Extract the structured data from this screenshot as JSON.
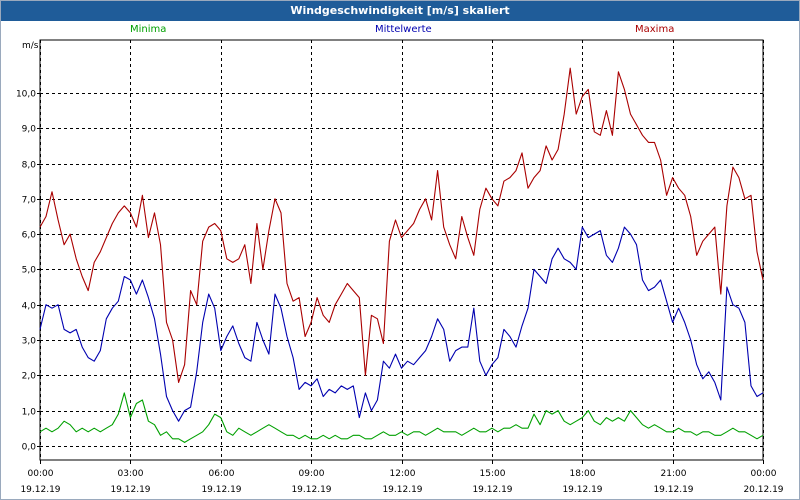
{
  "window": {
    "title": "Windgeschwindigkeit [m/s] skaliert"
  },
  "colors": {
    "titlebar": "#1f5c99",
    "minima": "#00a000",
    "mittelwerte": "#0000b0",
    "maxima": "#aa0000",
    "grid": "#000000"
  },
  "chart_data": {
    "type": "line",
    "title": "Windgeschwindigkeit [m/s] skaliert",
    "ylabel": "m/s",
    "xlabel": "",
    "ylim": [
      -0.4,
      11.5
    ],
    "xlim": [
      0,
      24
    ],
    "grid": true,
    "legend_placement": "top",
    "yticks": [
      {
        "value": 0.0,
        "label": "0,0"
      },
      {
        "value": 1.0,
        "label": "1,0"
      },
      {
        "value": 2.0,
        "label": "2,0"
      },
      {
        "value": 3.0,
        "label": "3,0"
      },
      {
        "value": 4.0,
        "label": "4,0"
      },
      {
        "value": 5.0,
        "label": "5,0"
      },
      {
        "value": 6.0,
        "label": "6,0"
      },
      {
        "value": 7.0,
        "label": "7,0"
      },
      {
        "value": 8.0,
        "label": "8,0"
      },
      {
        "value": 9.0,
        "label": "9,0"
      },
      {
        "value": 10.0,
        "label": "10,0"
      }
    ],
    "xticks": [
      {
        "value": 0,
        "time": "00:00",
        "date": "19.12.19"
      },
      {
        "value": 3,
        "time": "03:00",
        "date": "19.12.19"
      },
      {
        "value": 6,
        "time": "06:00",
        "date": "19.12.19"
      },
      {
        "value": 9,
        "time": "09:00",
        "date": "19.12.19"
      },
      {
        "value": 12,
        "time": "12:00",
        "date": "19.12.19"
      },
      {
        "value": 15,
        "time": "15:00",
        "date": "19.12.19"
      },
      {
        "value": 18,
        "time": "18:00",
        "date": "19.12.19"
      },
      {
        "value": 21,
        "time": "21:00",
        "date": "19.12.19"
      },
      {
        "value": 24,
        "time": "00:00",
        "date": "20.12.19"
      }
    ],
    "series": [
      {
        "name": "Maxima",
        "color": "#aa0000",
        "x": [
          0.0,
          0.2,
          0.4,
          0.6,
          0.8,
          1.0,
          1.2,
          1.4,
          1.6,
          1.8,
          2.0,
          2.2,
          2.4,
          2.6,
          2.8,
          3.0,
          3.2,
          3.4,
          3.6,
          3.8,
          4.0,
          4.2,
          4.4,
          4.6,
          4.8,
          5.0,
          5.2,
          5.4,
          5.6,
          5.8,
          6.0,
          6.2,
          6.4,
          6.6,
          6.8,
          7.0,
          7.2,
          7.4,
          7.6,
          7.8,
          8.0,
          8.2,
          8.4,
          8.6,
          8.8,
          9.0,
          9.2,
          9.4,
          9.6,
          9.8,
          10.0,
          10.2,
          10.4,
          10.6,
          10.8,
          11.0,
          11.2,
          11.4,
          11.6,
          11.8,
          12.0,
          12.2,
          12.4,
          12.6,
          12.8,
          13.0,
          13.2,
          13.4,
          13.6,
          13.8,
          14.0,
          14.2,
          14.4,
          14.6,
          14.8,
          15.0,
          15.2,
          15.4,
          15.6,
          15.8,
          16.0,
          16.2,
          16.4,
          16.6,
          16.8,
          17.0,
          17.2,
          17.4,
          17.6,
          17.8,
          18.0,
          18.2,
          18.4,
          18.6,
          18.8,
          19.0,
          19.2,
          19.4,
          19.6,
          19.8,
          20.0,
          20.2,
          20.4,
          20.6,
          20.8,
          21.0,
          21.2,
          21.4,
          21.6,
          21.8,
          22.0,
          22.2,
          22.4,
          22.6,
          22.8,
          23.0,
          23.2,
          23.4,
          23.6,
          23.8,
          24.0
        ],
        "values": [
          6.2,
          6.5,
          7.2,
          6.4,
          5.7,
          6.0,
          5.3,
          4.8,
          4.4,
          5.2,
          5.5,
          5.9,
          6.3,
          6.6,
          6.8,
          6.6,
          6.2,
          7.1,
          5.9,
          6.6,
          5.7,
          3.5,
          3.0,
          1.8,
          2.3,
          4.4,
          4.0,
          5.8,
          6.2,
          6.3,
          6.1,
          5.3,
          5.2,
          5.3,
          5.7,
          4.6,
          6.3,
          5.0,
          6.1,
          7.0,
          6.6,
          4.6,
          4.1,
          4.2,
          3.1,
          3.5,
          4.2,
          3.7,
          3.5,
          4.0,
          4.3,
          4.6,
          4.4,
          4.2,
          2.0,
          3.7,
          3.6,
          2.9,
          5.8,
          6.4,
          5.9,
          6.1,
          6.3,
          6.7,
          7.0,
          6.4,
          7.8,
          6.2,
          5.7,
          5.3,
          6.5,
          5.9,
          5.4,
          6.7,
          7.3,
          7.0,
          6.8,
          7.5,
          7.6,
          7.8,
          8.3,
          7.3,
          7.6,
          7.8,
          8.5,
          8.1,
          8.4,
          9.4,
          10.7,
          9.4,
          9.9,
          10.1,
          8.9,
          8.8,
          9.5,
          8.8,
          10.6,
          10.1,
          9.4,
          9.1,
          8.8,
          8.6,
          8.6,
          8.1,
          7.1,
          7.6,
          7.3,
          7.1,
          6.5,
          5.4,
          5.8,
          6.0,
          6.2,
          4.3,
          6.8,
          7.9,
          7.6,
          7.0,
          7.1,
          5.5,
          4.7
        ]
      },
      {
        "name": "Mittelwerte",
        "color": "#0000b0",
        "x": [
          0.0,
          0.2,
          0.4,
          0.6,
          0.8,
          1.0,
          1.2,
          1.4,
          1.6,
          1.8,
          2.0,
          2.2,
          2.4,
          2.6,
          2.8,
          3.0,
          3.2,
          3.4,
          3.6,
          3.8,
          4.0,
          4.2,
          4.4,
          4.6,
          4.8,
          5.0,
          5.2,
          5.4,
          5.6,
          5.8,
          6.0,
          6.2,
          6.4,
          6.6,
          6.8,
          7.0,
          7.2,
          7.4,
          7.6,
          7.8,
          8.0,
          8.2,
          8.4,
          8.6,
          8.8,
          9.0,
          9.2,
          9.4,
          9.6,
          9.8,
          10.0,
          10.2,
          10.4,
          10.6,
          10.8,
          11.0,
          11.2,
          11.4,
          11.6,
          11.8,
          12.0,
          12.2,
          12.4,
          12.6,
          12.8,
          13.0,
          13.2,
          13.4,
          13.6,
          13.8,
          14.0,
          14.2,
          14.4,
          14.6,
          14.8,
          15.0,
          15.2,
          15.4,
          15.6,
          15.8,
          16.0,
          16.2,
          16.4,
          16.6,
          16.8,
          17.0,
          17.2,
          17.4,
          17.6,
          17.8,
          18.0,
          18.2,
          18.4,
          18.6,
          18.8,
          19.0,
          19.2,
          19.4,
          19.6,
          19.8,
          20.0,
          20.2,
          20.4,
          20.6,
          20.8,
          21.0,
          21.2,
          21.4,
          21.6,
          21.8,
          22.0,
          22.2,
          22.4,
          22.6,
          22.8,
          23.0,
          23.2,
          23.4,
          23.6,
          23.8,
          24.0
        ],
        "values": [
          3.3,
          4.0,
          3.9,
          4.0,
          3.3,
          3.2,
          3.3,
          2.8,
          2.5,
          2.4,
          2.7,
          3.6,
          3.9,
          4.1,
          4.8,
          4.7,
          4.3,
          4.7,
          4.2,
          3.6,
          2.6,
          1.4,
          1.0,
          0.7,
          1.0,
          1.1,
          2.1,
          3.5,
          4.3,
          3.9,
          2.7,
          3.1,
          3.4,
          2.9,
          2.5,
          2.4,
          3.5,
          3.0,
          2.6,
          4.3,
          3.9,
          3.1,
          2.5,
          1.6,
          1.8,
          1.7,
          1.9,
          1.4,
          1.6,
          1.5,
          1.7,
          1.6,
          1.7,
          0.8,
          1.5,
          1.0,
          1.3,
          2.4,
          2.2,
          2.6,
          2.2,
          2.4,
          2.3,
          2.5,
          2.7,
          3.1,
          3.6,
          3.3,
          2.4,
          2.7,
          2.8,
          2.8,
          3.9,
          2.4,
          2.0,
          2.3,
          2.5,
          3.3,
          3.1,
          2.8,
          3.4,
          3.9,
          5.0,
          4.8,
          4.6,
          5.3,
          5.6,
          5.3,
          5.2,
          5.0,
          6.2,
          5.9,
          6.0,
          6.1,
          5.4,
          5.2,
          5.6,
          6.2,
          6.0,
          5.7,
          4.7,
          4.4,
          4.5,
          4.7,
          4.1,
          3.5,
          3.9,
          3.5,
          3.0,
          2.3,
          1.9,
          2.1,
          1.8,
          1.3,
          4.5,
          4.0,
          3.9,
          3.5,
          1.7,
          1.4,
          1.5
        ]
      },
      {
        "name": "Minima",
        "color": "#00a000",
        "x": [
          0.0,
          0.2,
          0.4,
          0.6,
          0.8,
          1.0,
          1.2,
          1.4,
          1.6,
          1.8,
          2.0,
          2.2,
          2.4,
          2.6,
          2.8,
          3.0,
          3.2,
          3.4,
          3.6,
          3.8,
          4.0,
          4.2,
          4.4,
          4.6,
          4.8,
          5.0,
          5.2,
          5.4,
          5.6,
          5.8,
          6.0,
          6.2,
          6.4,
          6.6,
          6.8,
          7.0,
          7.2,
          7.4,
          7.6,
          7.8,
          8.0,
          8.2,
          8.4,
          8.6,
          8.8,
          9.0,
          9.2,
          9.4,
          9.6,
          9.8,
          10.0,
          10.2,
          10.4,
          10.6,
          10.8,
          11.0,
          11.2,
          11.4,
          11.6,
          11.8,
          12.0,
          12.2,
          12.4,
          12.6,
          12.8,
          13.0,
          13.2,
          13.4,
          13.6,
          13.8,
          14.0,
          14.2,
          14.4,
          14.6,
          14.8,
          15.0,
          15.2,
          15.4,
          15.6,
          15.8,
          16.0,
          16.2,
          16.4,
          16.6,
          16.8,
          17.0,
          17.2,
          17.4,
          17.6,
          17.8,
          18.0,
          18.2,
          18.4,
          18.6,
          18.8,
          19.0,
          19.2,
          19.4,
          19.6,
          19.8,
          20.0,
          20.2,
          20.4,
          20.6,
          20.8,
          21.0,
          21.2,
          21.4,
          21.6,
          21.8,
          22.0,
          22.2,
          22.4,
          22.6,
          22.8,
          23.0,
          23.2,
          23.4,
          23.6,
          23.8,
          24.0
        ],
        "values": [
          0.4,
          0.5,
          0.4,
          0.5,
          0.7,
          0.6,
          0.4,
          0.5,
          0.4,
          0.5,
          0.4,
          0.5,
          0.6,
          0.9,
          1.5,
          0.8,
          1.2,
          1.3,
          0.7,
          0.6,
          0.3,
          0.4,
          0.2,
          0.2,
          0.1,
          0.2,
          0.3,
          0.4,
          0.6,
          0.9,
          0.8,
          0.4,
          0.3,
          0.5,
          0.4,
          0.3,
          0.4,
          0.5,
          0.6,
          0.5,
          0.4,
          0.3,
          0.3,
          0.2,
          0.3,
          0.2,
          0.2,
          0.3,
          0.2,
          0.3,
          0.2,
          0.2,
          0.3,
          0.3,
          0.2,
          0.2,
          0.3,
          0.4,
          0.3,
          0.3,
          0.4,
          0.3,
          0.4,
          0.4,
          0.3,
          0.4,
          0.5,
          0.4,
          0.4,
          0.4,
          0.3,
          0.4,
          0.5,
          0.4,
          0.4,
          0.5,
          0.4,
          0.5,
          0.5,
          0.6,
          0.5,
          0.5,
          0.9,
          0.6,
          1.0,
          0.9,
          1.0,
          0.7,
          0.6,
          0.7,
          0.8,
          1.0,
          0.7,
          0.6,
          0.8,
          0.7,
          0.8,
          0.7,
          1.0,
          0.8,
          0.6,
          0.5,
          0.6,
          0.5,
          0.4,
          0.4,
          0.5,
          0.4,
          0.4,
          0.3,
          0.4,
          0.4,
          0.3,
          0.3,
          0.4,
          0.5,
          0.4,
          0.4,
          0.3,
          0.2,
          0.3
        ]
      }
    ]
  }
}
